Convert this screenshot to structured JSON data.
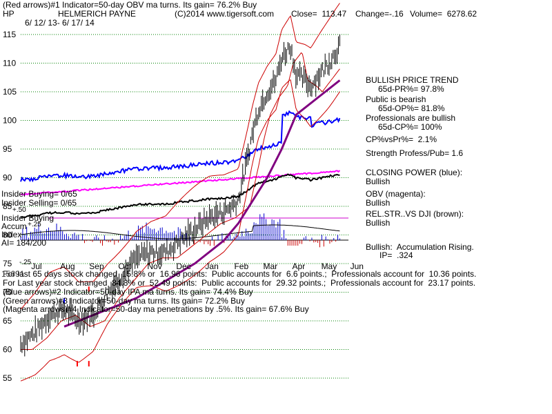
{
  "header": {
    "line1": "(Red arrows)#1 Indicator=50-day OBV ma turns. Its gain= 76.2% Buy",
    "symbol": "HP",
    "company": "HELMERICH PAYNE",
    "copyright": "(C)2014 www.tigersoft.com",
    "close": "Close=  113.47",
    "change": "Change=-.16",
    "volume": "Volume=  6278.62",
    "date_range": "6/ 12/ 13- 6/ 17/ 14"
  },
  "right_panel": {
    "trend_title": "BULLISH PRICE TREND",
    "pr": "65d-PR%= 97.8%",
    "public": "Public is bearish",
    "op": "65d-OP%= 81.8%",
    "professionals": "Professionals are bullish",
    "cp": "65d-CP%= 100%",
    "cpvspr": "CP%vsPr%=  2.1%",
    "strength": "Strength Profess/Pub= 1.6",
    "closing_power": "CLOSING POWER (blue):",
    "closing_power_status": "Bullish",
    "obv": "OBV (magenta):",
    "obv_status": "Bullish",
    "relstr": "REL.STR..VS DJI (brown):",
    "relstr_status": "Bullish",
    "accum": "Bullish:  Accumulation Rising.",
    "ip": "IP=  .324"
  },
  "left_labels": {
    "insider_buying": "Insider Buying= 0/65",
    "insider_selling": "Insider Selling= 0/65",
    "plus50": "+.50",
    "insider_buying2": "Insider Buying",
    "accum": "Accum",
    "plus25": "+.25",
    "index": "Index",
    "ai": "AI= 184/200",
    "minus25": "-.25"
  },
  "footer": {
    "line1": "For last 65 days stock changed  15.8% or  16.96 points:  Public accounts for  6.6 points.;  Professionals account for  10.36 points.",
    "overlap": "15691",
    "line2": "For Last year stock changed  84.8% or  52.49 points:  Public accounts for  29.32 points.;  Professionals account for  23.17 points.",
    "line3": "(Blue arrows)#2 Indicator=50-day IPA ma turns. Its gain= 74.4% Buy",
    "line4": "(Green arrows)#3 Indicator=50-day ma turns. Its gain= 72.2% Buy",
    "line5": "(Magenta arrows)#4 Indicator=50-day ma penetrations by .5%. Its gain= 67.6% Buy"
  },
  "colors": {
    "price": "#000000",
    "band": "#cc0000",
    "ma": "#800080",
    "closing_power": "#0000ff",
    "obv": "#ff00ff",
    "relstr": "#000000",
    "accum_bars": "#0000cc",
    "gridline": "#008000",
    "red_arrow": "#ff0000",
    "blue_arrow": "#0000ff"
  },
  "chart_data": {
    "type": "line",
    "y_ticks": [
      "115",
      "110",
      "105",
      "100",
      "95",
      "90",
      "85",
      "80",
      "75",
      "70",
      "65",
      "60",
      "55"
    ],
    "ylim": [
      53,
      117
    ],
    "x_ticks": [
      "Jul",
      "Aug",
      "Sep",
      "Oct",
      "Nov",
      "Dec",
      "Jan",
      "Feb",
      "Mar",
      "Apr",
      "May",
      "Jun"
    ],
    "series": [
      {
        "name": "price",
        "x": [
          0,
          0.5,
          1,
          1.5,
          2,
          2.5,
          3,
          3.5,
          4,
          4.5,
          5,
          5.5,
          6,
          6.5,
          7,
          7.5,
          7.8,
          8,
          8.2,
          8.5,
          8.8,
          9,
          9.3,
          9.5,
          9.8,
          10,
          10.3,
          10.6,
          11
        ],
        "y": [
          61,
          63,
          66,
          67,
          65,
          66,
          70,
          73,
          76,
          77,
          77,
          79,
          81,
          83,
          84,
          86,
          93,
          98,
          102,
          105,
          107,
          111,
          113,
          108,
          107,
          106,
          108,
          110,
          113
        ]
      },
      {
        "name": "50-day ma",
        "x": [
          1.5,
          2,
          3,
          4,
          5,
          6,
          7,
          7.5,
          8,
          8.5,
          9,
          9.5,
          10,
          10.5,
          11
        ],
        "y": [
          64,
          65,
          67,
          69,
          72,
          75,
          79,
          82,
          86,
          90,
          95,
          101,
          103,
          105,
          107
        ]
      }
    ]
  }
}
